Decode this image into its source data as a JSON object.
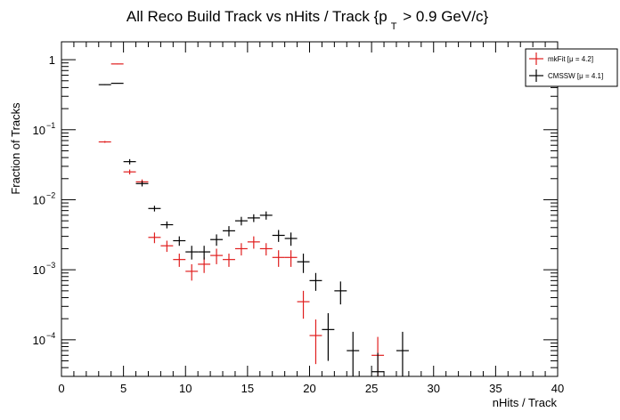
{
  "chart_data": {
    "type": "scatter",
    "title": {
      "prefix": "All Reco Build Track vs nHits / Track {p",
      "subscript": "T",
      "suffix": " > 0.9 GeV/c}"
    },
    "xlabel": "nHits / Track",
    "ylabel": "Fraction of Tracks",
    "xlim": [
      0,
      40
    ],
    "ylim": [
      3e-05,
      1.8
    ],
    "y_scale": "log",
    "x_ticks": [
      0,
      5,
      10,
      15,
      20,
      25,
      30,
      35,
      40
    ],
    "y_ticks": [
      {
        "value": 1,
        "label": "1",
        "exp": ""
      },
      {
        "value": 0.1,
        "label": "10",
        "exp": "−1"
      },
      {
        "value": 0.01,
        "label": "10",
        "exp": "−2"
      },
      {
        "value": 0.001,
        "label": "10",
        "exp": "−3"
      },
      {
        "value": 0.0001,
        "label": "10",
        "exp": "−4"
      }
    ],
    "grid": false,
    "legend_position": "top-right",
    "series": [
      {
        "name": "CMSSW  [μ = 4.1]",
        "color": "#000000",
        "bin_width": 1,
        "x": [
          3.5,
          4.5,
          5.5,
          6.5,
          7.5,
          8.5,
          9.5,
          10.5,
          11.5,
          12.5,
          13.5,
          14.5,
          15.5,
          16.5,
          17.5,
          18.5,
          19.5,
          20.5,
          21.5,
          22.5,
          23.5,
          25.5,
          27.5
        ],
        "y": [
          0.44,
          0.46,
          0.035,
          0.017,
          0.0075,
          0.0044,
          0.0026,
          0.0018,
          0.0018,
          0.0027,
          0.0036,
          0.005,
          0.0055,
          0.006,
          0.0031,
          0.0028,
          0.0013,
          0.0007,
          0.00014,
          0.0005,
          7e-05,
          3.5e-05,
          7e-05
        ],
        "y_err_low": [
          0.005,
          0.005,
          0.003,
          0.0015,
          0.0007,
          0.0005,
          0.0004,
          0.0004,
          0.0004,
          0.0005,
          0.0006,
          0.0007,
          0.0007,
          0.0008,
          0.0006,
          0.0006,
          0.0004,
          0.0002,
          9e-05,
          0.00018,
          5e-05,
          3e-05,
          5e-05
        ],
        "y_err_high": [
          0.005,
          0.005,
          0.003,
          0.0015,
          0.0007,
          0.0005,
          0.0004,
          0.0004,
          0.0004,
          0.0005,
          0.0006,
          0.0007,
          0.0007,
          0.0008,
          0.0006,
          0.0006,
          0.0004,
          0.0002,
          0.0001,
          0.00018,
          6e-05,
          3e-05,
          6e-05
        ]
      },
      {
        "name": "mkFit  [μ = 4.2]",
        "color": "#e01e1e",
        "bin_width": 1,
        "x": [
          3.5,
          4.5,
          5.5,
          6.5,
          7.5,
          8.5,
          9.5,
          10.5,
          11.5,
          12.5,
          13.5,
          14.5,
          15.5,
          16.5,
          17.5,
          18.5,
          19.5,
          20.5,
          25.5
        ],
        "y": [
          0.067,
          0.87,
          0.025,
          0.018,
          0.0029,
          0.0022,
          0.0014,
          0.00095,
          0.0012,
          0.0016,
          0.0014,
          0.002,
          0.0025,
          0.002,
          0.0015,
          0.0015,
          0.00035,
          0.000115,
          6e-05
        ],
        "y_err_low": [
          0.002,
          0.01,
          0.002,
          0.0015,
          0.0005,
          0.0004,
          0.0003,
          0.00025,
          0.0003,
          0.0004,
          0.0003,
          0.0004,
          0.0005,
          0.0004,
          0.0004,
          0.0004,
          0.00015,
          7e-05,
          4e-05
        ],
        "y_err_high": [
          0.002,
          0.01,
          0.002,
          0.0015,
          0.0005,
          0.0004,
          0.0003,
          0.00025,
          0.0003,
          0.0004,
          0.0003,
          0.0004,
          0.0005,
          0.0004,
          0.0004,
          0.0004,
          0.00015,
          8e-05,
          5e-05
        ]
      }
    ],
    "legend": [
      {
        "label": "mkFit  [μ = 4.2]",
        "color": "#e01e1e"
      },
      {
        "label": "CMSSW  [μ = 4.1]",
        "color": "#000000"
      }
    ]
  }
}
